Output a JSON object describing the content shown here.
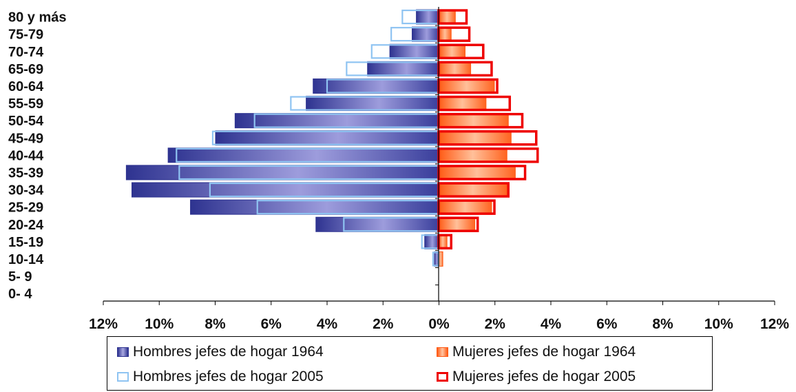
{
  "chart_data": {
    "type": "bar",
    "orientation": "horizontal-pyramid",
    "categories": [
      "80 y más",
      "75-79",
      "70-74",
      "65-69",
      "60-64",
      "55-59",
      "50-54",
      "45-49",
      "40-44",
      "35-39",
      "30-34",
      "25-29",
      "20-24",
      "15-19",
      "10-14",
      "5- 9",
      "0- 4"
    ],
    "series": [
      {
        "name": "Hombres jefes de hogar 1964",
        "side": "left",
        "values": [
          0.8,
          0.95,
          1.75,
          2.55,
          4.5,
          4.75,
          7.3,
          8.0,
          9.7,
          11.2,
          11.0,
          8.9,
          4.4,
          0.5,
          0.15,
          0,
          0
        ]
      },
      {
        "name": "Mujeres jefes de hogar 1964",
        "side": "right",
        "values": [
          0.6,
          0.45,
          0.95,
          1.15,
          2.0,
          1.7,
          2.5,
          2.6,
          2.45,
          2.75,
          2.45,
          1.9,
          1.3,
          0.3,
          0.15,
          0,
          0
        ]
      },
      {
        "name": "Hombres jefes de hogar 2005",
        "side": "left",
        "values": [
          1.3,
          1.7,
          2.4,
          3.3,
          4.0,
          5.3,
          6.6,
          8.1,
          9.4,
          9.3,
          8.2,
          6.5,
          3.4,
          0.6,
          0.2,
          0,
          0
        ]
      },
      {
        "name": "Mujeres jefes de hogar 2005",
        "side": "right",
        "values": [
          1.0,
          1.1,
          1.6,
          1.9,
          2.1,
          2.55,
          3.0,
          3.5,
          3.55,
          3.1,
          2.5,
          2.0,
          1.4,
          0.45,
          0,
          0,
          0
        ]
      }
    ],
    "x_ticks": [
      "12%",
      "10%",
      "8%",
      "6%",
      "4%",
      "2%",
      "0%",
      "2%",
      "4%",
      "6%",
      "8%",
      "10%",
      "12%"
    ],
    "xlim": [
      -12,
      12
    ],
    "legend_placement": "bottom",
    "grid": false,
    "colors": {
      "men_1964": "#2e3390",
      "women_1964": "#ff5a14",
      "men_2005": "#8fc4f2",
      "women_2005": "#ee0000"
    }
  },
  "legend": {
    "men_1964": "Hombres jefes de hogar 1964",
    "women_1964": "Mujeres jefes de hogar 1964",
    "men_2005": "Hombres jefes de hogar 2005",
    "women_2005": "Mujeres jefes de hogar 2005"
  }
}
